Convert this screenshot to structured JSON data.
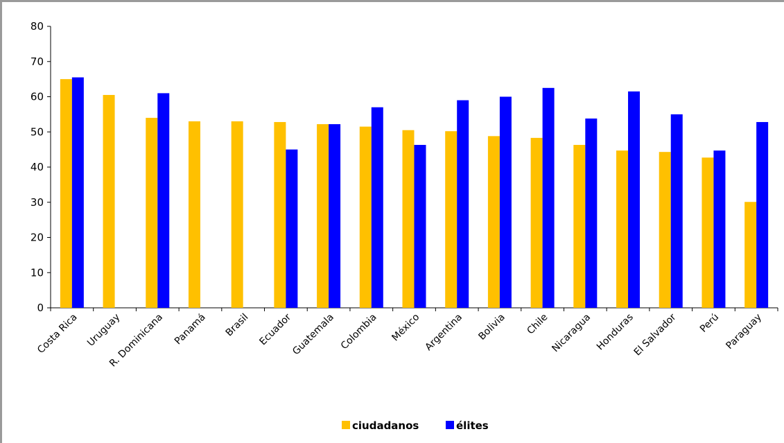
{
  "chart_data": {
    "type": "bar",
    "title": "",
    "xlabel": "",
    "ylabel": "",
    "ylim": [
      0,
      80
    ],
    "yticks": [
      0,
      10,
      20,
      30,
      40,
      50,
      60,
      70,
      80
    ],
    "ytick_labels": [
      "0",
      "10",
      "20",
      "30",
      "40",
      "50",
      "60",
      "70",
      "80"
    ],
    "grid": false,
    "legend_position": "bottom-center",
    "categories": [
      "Costa Rica",
      "Uruguay",
      "R. Dominicana",
      "Panamá",
      "Brasil",
      "Ecuador",
      "Guatemala",
      "Colombia",
      "México",
      "Argentina",
      "Bolivia",
      "Chile",
      "Nicaragua",
      "Honduras",
      "El Salvador",
      "Perú",
      "Paraguay"
    ],
    "series": [
      {
        "name": "ciudadanos",
        "color": "#FFC000",
        "values": [
          65.0,
          60.5,
          54.0,
          53.0,
          53.0,
          52.8,
          52.2,
          51.5,
          50.5,
          50.2,
          48.8,
          48.3,
          46.3,
          44.7,
          44.3,
          42.7,
          30.1
        ]
      },
      {
        "name": "élites",
        "color": "#0000FF",
        "values": [
          65.5,
          null,
          61.0,
          null,
          null,
          45.0,
          52.2,
          57.0,
          46.3,
          59.0,
          60.0,
          62.5,
          53.8,
          61.5,
          55.0,
          44.7,
          52.8
        ]
      }
    ]
  }
}
